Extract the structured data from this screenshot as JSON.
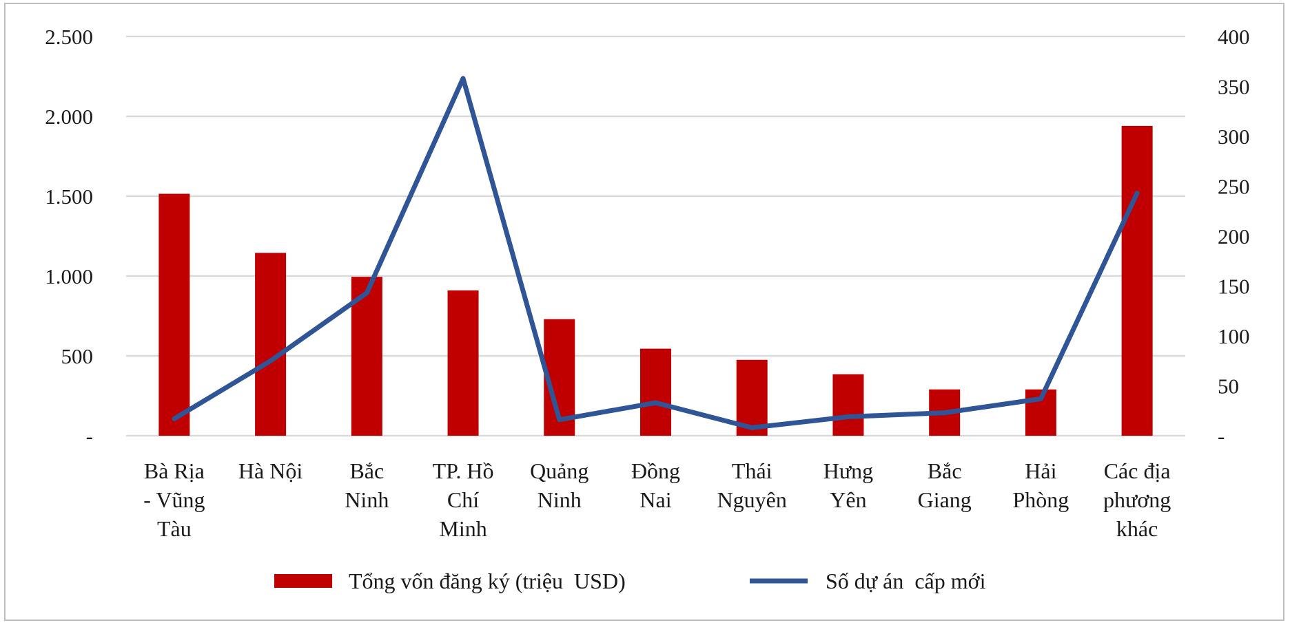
{
  "chart_data": {
    "type": "bar",
    "categories": [
      [
        "Bà Rịa",
        "- Vũng",
        "Tàu"
      ],
      [
        "Hà Nội"
      ],
      [
        "Bắc",
        "Ninh"
      ],
      [
        "TP. Hồ",
        "Chí",
        "Minh"
      ],
      [
        "Quảng",
        "Ninh"
      ],
      [
        "Đồng",
        "Nai"
      ],
      [
        "Thái",
        "Nguyên"
      ],
      [
        "Hưng",
        "Yên"
      ],
      [
        "Bắc",
        "Giang"
      ],
      [
        "Hải",
        "Phòng"
      ],
      [
        "Các địa",
        "phương",
        "khác"
      ]
    ],
    "series": [
      {
        "name": "Tổng vốn đăng ký (triệu  USD)",
        "type": "bar",
        "axis": "left",
        "color": "#c00000",
        "values": [
          1515,
          1145,
          995,
          910,
          730,
          545,
          475,
          385,
          290,
          290,
          1940
        ]
      },
      {
        "name": "Số dự án  cấp mới",
        "type": "line",
        "axis": "right",
        "color": "#2f5597",
        "values": [
          17,
          75,
          143,
          358,
          16,
          33,
          8,
          19,
          23,
          37,
          243
        ]
      }
    ],
    "y_left": {
      "ylim": [
        0,
        2500
      ],
      "ticks": [
        0,
        500,
        1000,
        1500,
        2000,
        2500
      ],
      "tick_labels": [
        "-",
        "500",
        "1.000",
        "1.500",
        "2.000",
        "2.500"
      ]
    },
    "y_right": {
      "ylim": [
        0,
        400
      ],
      "ticks": [
        0,
        50,
        100,
        150,
        200,
        250,
        300,
        350,
        400
      ],
      "tick_labels": [
        "-",
        "50",
        "100",
        "150",
        "200",
        "250",
        "300",
        "350",
        "400"
      ]
    },
    "grid": true,
    "legend_position": "bottom"
  }
}
